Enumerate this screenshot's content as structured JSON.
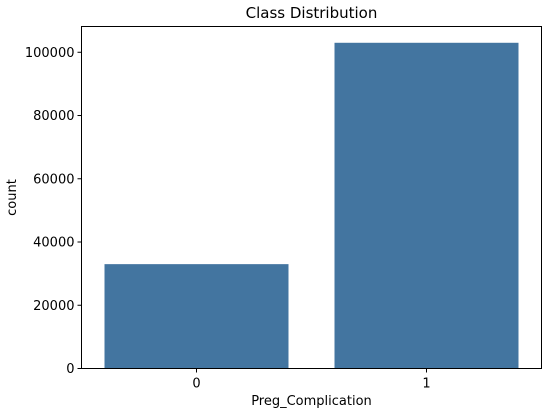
{
  "chart_data": {
    "type": "bar",
    "title": "Class Distribution",
    "xlabel": "Preg_Complication",
    "ylabel": "count",
    "categories": [
      "0",
      "1"
    ],
    "values": [
      33000,
      103000
    ],
    "ylim": [
      0,
      108150
    ],
    "yticks": [
      0,
      20000,
      40000,
      60000,
      80000,
      100000
    ],
    "ytick_labels": [
      "0",
      "20000",
      "40000",
      "60000",
      "80000",
      "100000"
    ],
    "bar_color": "#4375a0",
    "grid": false,
    "legend": "none"
  }
}
